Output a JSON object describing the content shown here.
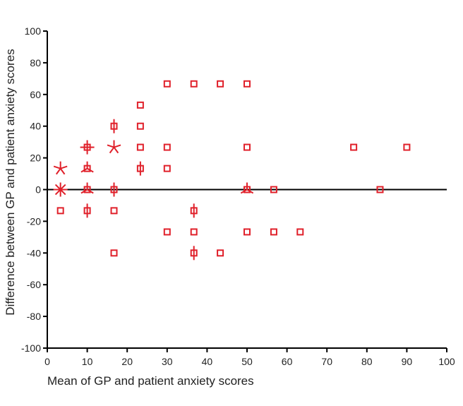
{
  "chart_data": {
    "type": "scatter",
    "title": "",
    "xlabel": "Mean of GP and patient anxiety scores",
    "ylabel": "Difference between GP and patient anxiety scores",
    "xlim": [
      0,
      100
    ],
    "ylim": [
      -100,
      100
    ],
    "x_ticks": [
      "0",
      "10",
      "20",
      "30",
      "40",
      "50",
      "60",
      "70",
      "80",
      "90",
      "100"
    ],
    "y_ticks": [
      "100",
      "80",
      "60",
      "40",
      "20",
      "0",
      "-20",
      "-40",
      "-60",
      "-80",
      "-100"
    ],
    "reference_line_y": 0,
    "grid": false,
    "legend": "none",
    "marker_color": "#e0202a",
    "marker_legend": "sunflower plot: each stroke through a point marks one additional observation",
    "points": [
      {
        "x": 3.3,
        "y": 13.3,
        "count": 5
      },
      {
        "x": 3.3,
        "y": 0,
        "count": 8
      },
      {
        "x": 3.3,
        "y": -13.3,
        "count": 1
      },
      {
        "x": 10,
        "y": 26.7,
        "count": 4
      },
      {
        "x": 10,
        "y": 13.3,
        "count": 3
      },
      {
        "x": 10,
        "y": 0,
        "count": 3
      },
      {
        "x": 10,
        "y": -13.3,
        "count": 2
      },
      {
        "x": 16.7,
        "y": 40,
        "count": 2
      },
      {
        "x": 16.7,
        "y": 26.7,
        "count": 5
      },
      {
        "x": 16.7,
        "y": 0,
        "count": 2
      },
      {
        "x": 16.7,
        "y": -13.3,
        "count": 1
      },
      {
        "x": 16.7,
        "y": -40,
        "count": 1
      },
      {
        "x": 23.3,
        "y": 53.3,
        "count": 1
      },
      {
        "x": 23.3,
        "y": 40,
        "count": 1
      },
      {
        "x": 23.3,
        "y": 26.7,
        "count": 1
      },
      {
        "x": 23.3,
        "y": 13.3,
        "count": 2
      },
      {
        "x": 30,
        "y": 66.7,
        "count": 1
      },
      {
        "x": 30,
        "y": 26.7,
        "count": 1
      },
      {
        "x": 30,
        "y": 13.3,
        "count": 1
      },
      {
        "x": 30,
        "y": -26.7,
        "count": 1
      },
      {
        "x": 36.7,
        "y": 66.7,
        "count": 1
      },
      {
        "x": 36.7,
        "y": -13.3,
        "count": 2
      },
      {
        "x": 36.7,
        "y": -26.7,
        "count": 1
      },
      {
        "x": 36.7,
        "y": -40,
        "count": 2
      },
      {
        "x": 43.3,
        "y": 66.7,
        "count": 1
      },
      {
        "x": 43.3,
        "y": -40,
        "count": 1
      },
      {
        "x": 50,
        "y": 66.7,
        "count": 1
      },
      {
        "x": 50,
        "y": 26.7,
        "count": 1
      },
      {
        "x": 50,
        "y": 0,
        "count": 3
      },
      {
        "x": 50,
        "y": -26.7,
        "count": 1
      },
      {
        "x": 56.7,
        "y": 0,
        "count": 1
      },
      {
        "x": 56.7,
        "y": -26.7,
        "count": 1
      },
      {
        "x": 63.3,
        "y": -26.7,
        "count": 1
      },
      {
        "x": 76.7,
        "y": 26.7,
        "count": 1
      },
      {
        "x": 83.3,
        "y": 0,
        "count": 1
      },
      {
        "x": 90,
        "y": 26.7,
        "count": 1
      }
    ]
  }
}
